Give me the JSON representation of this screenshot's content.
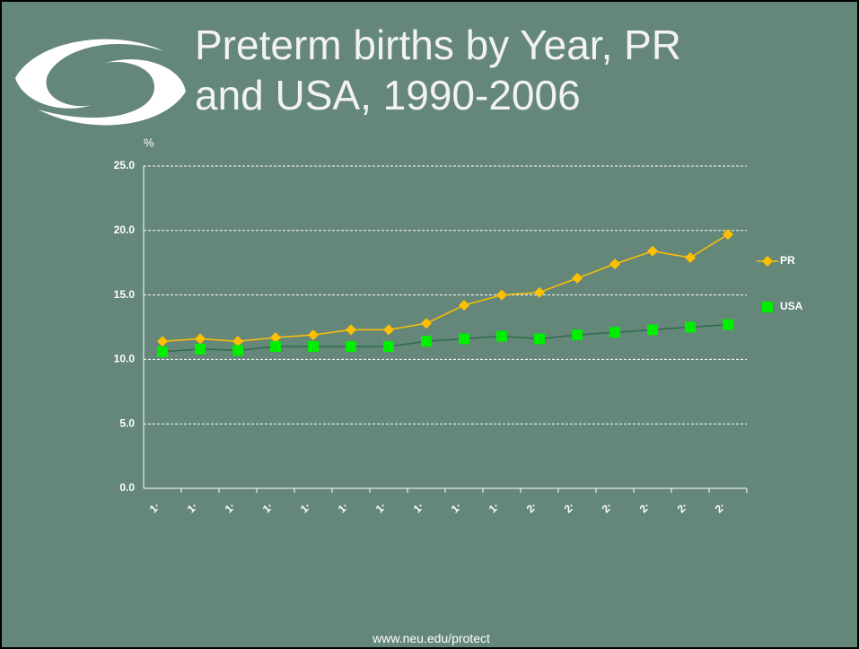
{
  "chart_data": {
    "type": "line",
    "title": "Preterm births by Year, PR and USA, 1990-2006",
    "y_label": "%",
    "footer": "www.neu.edu/protect",
    "categories": [
      "1·",
      "1·",
      "1·",
      "1·",
      "1·",
      "1·",
      "1·",
      "1·",
      "1·",
      "1·",
      "2·",
      "2·",
      "2·",
      "2·",
      "2·",
      "2·"
    ],
    "series": [
      {
        "name": "PR",
        "color": "#ffc000",
        "line_color": "#ffc000",
        "marker": "diamond",
        "values": [
          11.4,
          11.6,
          11.4,
          11.7,
          11.9,
          12.3,
          12.3,
          12.8,
          14.2,
          15.0,
          15.2,
          16.3,
          17.4,
          18.4,
          17.9,
          19.7
        ]
      },
      {
        "name": "USA",
        "color": "#00ee00",
        "line_color": "#2e6b48",
        "marker": "square",
        "values": [
          10.6,
          10.8,
          10.7,
          11.0,
          11.0,
          11.0,
          11.0,
          11.4,
          11.6,
          11.8,
          11.6,
          11.9,
          12.1,
          12.3,
          12.5,
          12.7
        ]
      }
    ],
    "ylim": [
      0,
      25
    ],
    "yticks": [
      {
        "value": 0,
        "label": "0.0"
      },
      {
        "value": 5,
        "label": "5.0"
      },
      {
        "value": 10,
        "label": "10.0"
      },
      {
        "value": 15,
        "label": "15.0"
      },
      {
        "value": 20,
        "label": "20.0"
      },
      {
        "value": 25,
        "label": "25.0"
      }
    ],
    "grid": true,
    "legend": "right"
  }
}
